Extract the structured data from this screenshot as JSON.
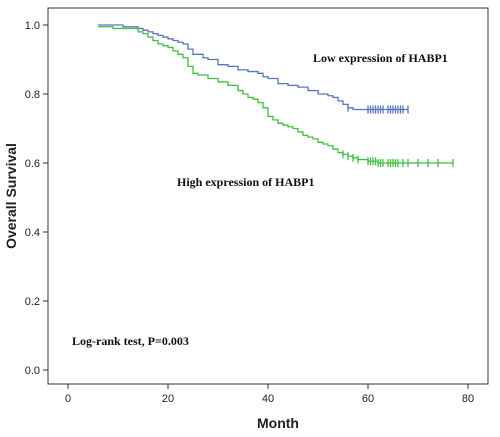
{
  "chart_data": {
    "type": "line",
    "title": "",
    "xlabel": "Month",
    "ylabel": "Overall Survival",
    "xlim": [
      0,
      80
    ],
    "ylim": [
      0,
      1.0
    ],
    "xticks": [
      "0",
      "20",
      "40",
      "60",
      "80"
    ],
    "yticks": [
      "0.0",
      "0.2",
      "0.4",
      "0.6",
      "0.8",
      "1.0"
    ],
    "grid": false,
    "annotations": {
      "low_label": "Low expression of HABP1",
      "high_label": "High expression of HABP1",
      "test_label": "Log-rank test, P=0.003"
    },
    "series": [
      {
        "name": "Low expression of HABP1",
        "color": "#5b73c4",
        "x": [
          6,
          11,
          14,
          15,
          16,
          17,
          18,
          19,
          20,
          21,
          22,
          23,
          24,
          25,
          27,
          28,
          30,
          32,
          34,
          36,
          38,
          39,
          40,
          42,
          44,
          46,
          48,
          50,
          52,
          53,
          54,
          55,
          56,
          57,
          58,
          60,
          62,
          64,
          66,
          68
        ],
        "y": [
          1.0,
          0.995,
          0.99,
          0.985,
          0.98,
          0.975,
          0.97,
          0.965,
          0.96,
          0.955,
          0.95,
          0.945,
          0.93,
          0.915,
          0.905,
          0.9,
          0.885,
          0.88,
          0.87,
          0.865,
          0.86,
          0.85,
          0.845,
          0.83,
          0.825,
          0.82,
          0.81,
          0.8,
          0.795,
          0.79,
          0.78,
          0.77,
          0.76,
          0.755,
          0.755,
          0.755,
          0.755,
          0.755,
          0.755,
          0.755
        ],
        "censored_x": [
          56,
          60,
          60.5,
          61,
          61.5,
          62,
          62.5,
          63,
          64,
          64.5,
          65,
          65.5,
          66,
          66.5,
          67,
          68
        ]
      },
      {
        "name": "High expression of HABP1",
        "color": "#3ec13e",
        "x": [
          6,
          9,
          14,
          15,
          16,
          17,
          18,
          19,
          20,
          21,
          22,
          23,
          24,
          25,
          26,
          28,
          30,
          32,
          34,
          35,
          36,
          37,
          38,
          39,
          40,
          41,
          42,
          43,
          44,
          45,
          46,
          47,
          48,
          49,
          50,
          51,
          52,
          53,
          54,
          55,
          56,
          57,
          58,
          60,
          62,
          64,
          66,
          68,
          70,
          72,
          74,
          77
        ],
        "y": [
          0.995,
          0.99,
          0.98,
          0.975,
          0.965,
          0.955,
          0.945,
          0.94,
          0.935,
          0.925,
          0.915,
          0.905,
          0.88,
          0.86,
          0.855,
          0.845,
          0.835,
          0.825,
          0.81,
          0.8,
          0.79,
          0.785,
          0.775,
          0.76,
          0.735,
          0.725,
          0.715,
          0.71,
          0.705,
          0.7,
          0.69,
          0.68,
          0.675,
          0.67,
          0.66,
          0.655,
          0.65,
          0.64,
          0.63,
          0.625,
          0.62,
          0.615,
          0.61,
          0.605,
          0.6,
          0.6,
          0.6,
          0.6,
          0.6,
          0.6,
          0.6,
          0.6
        ],
        "censored_x": [
          55,
          56,
          57,
          58,
          60,
          60.5,
          61,
          61.5,
          62,
          62.5,
          63,
          64,
          64.5,
          65,
          65.5,
          66,
          67,
          68,
          70,
          72,
          74,
          77
        ]
      }
    ]
  }
}
